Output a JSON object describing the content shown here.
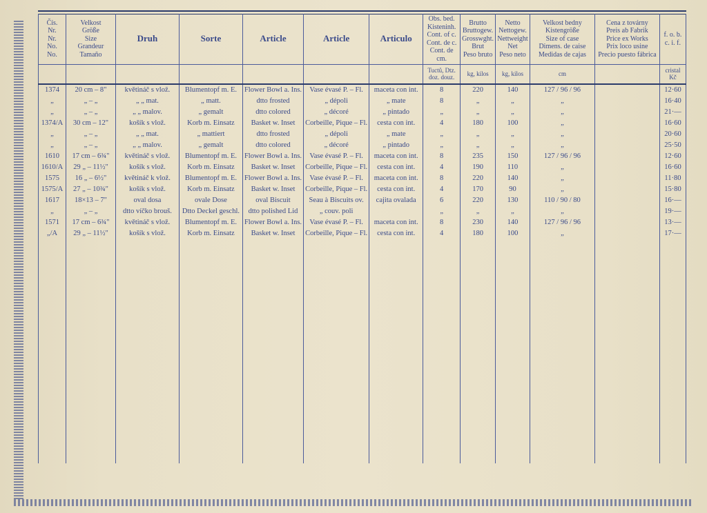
{
  "headers": {
    "no": [
      "Čís.",
      "Nr.",
      "Nr.",
      "No.",
      "No."
    ],
    "size": [
      "Velkost",
      "Größe",
      "Size",
      "Grandeur",
      "Tamaño"
    ],
    "druh": "Druh",
    "sorte": "Sorte",
    "art1": "Article",
    "art2": "Article",
    "art3": "Articulo",
    "cont": [
      "Obs. bed.",
      "Kisteninh.",
      "Cont. of c.",
      "Cont. de c.",
      "Cont. de cm."
    ],
    "brut": [
      "Brutto",
      "Bruttogew.",
      "Grosswght.",
      "Brut",
      "Peso bruto"
    ],
    "net": [
      "Netto",
      "Nettogew.",
      "Nettweight",
      "Net",
      "Peso neto"
    ],
    "dim": [
      "Velkost bedny",
      "Kistengröße",
      "Size of case",
      "Dimens. de caise",
      "Medidas de cajas"
    ],
    "price": [
      "Cena z továrny",
      "Preis ab Fabrik",
      "Price ex Works",
      "Prix loco usine",
      "Precio puesto fábrica"
    ],
    "fob": [
      "f. o. b.",
      "c. i. f."
    ]
  },
  "units": {
    "cont": "Tuctů, Dtz. doz. douz.",
    "brut": "kg, kilos",
    "net": "kg, kilos",
    "dim": "cm",
    "fob": "cristal Kč"
  },
  "rows": [
    {
      "no": "1374",
      "size": "20 cm – 8\"",
      "druh": "květináč s vlož.",
      "sorte": "Blumentopf m. E.",
      "a1": "Flower Bowl a. Ins.",
      "a2": "Vase évasé P. – Fl.",
      "a3": "maceta con int.",
      "cont": "8",
      "brut": "220",
      "net": "140",
      "dim": "127 / 96 / 96",
      "fob": "12·60"
    },
    {
      "no": "„",
      "size": "„   –   „",
      "druh": "„     „     mat.",
      "sorte": "„     matt.",
      "a1": "dtto  frosted",
      "a2": "„   dépoli",
      "a3": "„   mate",
      "cont": "8",
      "brut": "„",
      "net": "„",
      "dim": "„",
      "fob": "16·40"
    },
    {
      "no": "„",
      "size": "„   –   „",
      "druh": "„     „   malov.",
      "sorte": "„   gemalt",
      "a1": "dtto  colored",
      "a2": "„   décoré",
      "a3": "„   pintado",
      "cont": "„",
      "brut": "„",
      "net": "„",
      "dim": "„",
      "fob": "21·—"
    },
    {
      "no": "1374/A",
      "size": "30 cm – 12\"",
      "druh": "košík s vlož.",
      "sorte": "Korb m. Einsatz",
      "a1": "Basket w. Inset",
      "a2": "Corbeille, Pique – Fl.",
      "a3": "cesta con int.",
      "cont": "4",
      "brut": "180",
      "net": "100",
      "dim": "„",
      "fob": "16·60"
    },
    {
      "no": "„",
      "size": "„   –   „",
      "druh": "„     „     mat.",
      "sorte": "„   mattiert",
      "a1": "dtto  frosted",
      "a2": "„   dépoli",
      "a3": "„   mate",
      "cont": "„",
      "brut": "„",
      "net": "„",
      "dim": "„",
      "fob": "20·60"
    },
    {
      "no": "„",
      "size": "„   –   „",
      "druh": "„     „   malov.",
      "sorte": "„   gemalt",
      "a1": "dtto  colored",
      "a2": "„   décoré",
      "a3": "„   pintado",
      "cont": "„",
      "brut": "„",
      "net": "„",
      "dim": "„",
      "fob": "25·50"
    },
    {
      "no": "1610",
      "size": "17 cm – 6¾\"",
      "druh": "květináč s vlož.",
      "sorte": "Blumentopf m. E.",
      "a1": "Flower Bowl a. Ins.",
      "a2": "Vase évasé P. – Fl.",
      "a3": "maceta con int.",
      "cont": "8",
      "brut": "235",
      "net": "150",
      "dim": "127 / 96 / 96",
      "fob": "12·60"
    },
    {
      "no": "1610/A",
      "size": "29  „ – 11½\"",
      "druh": "košík s vlož.",
      "sorte": "Korb m. Einsatz",
      "a1": "Basket w. Inset",
      "a2": "Corbeille, Pique – Fl.",
      "a3": "cesta con int.",
      "cont": "4",
      "brut": "190",
      "net": "110",
      "dim": "„",
      "fob": "16·60"
    },
    {
      "no": "1575",
      "size": "16  „ –  6½\"",
      "druh": "květináč k vlož.",
      "sorte": "Blumentopf m. E.",
      "a1": "Flower Bowl a. Ins.",
      "a2": "Vase évasé P. – Fl.",
      "a3": "maceta con int.",
      "cont": "8",
      "brut": "220",
      "net": "140",
      "dim": "„",
      "fob": "11·80"
    },
    {
      "no": "1575/A",
      "size": "27  „ – 10¾\"",
      "druh": "košík s vlož.",
      "sorte": "Korb m. Einsatz",
      "a1": "Basket w. Inset",
      "a2": "Corbeille, Pique – Fl.",
      "a3": "cesta con int.",
      "cont": "4",
      "brut": "170",
      "net": "90",
      "dim": "„",
      "fob": "15·80"
    },
    {
      "no": "1617",
      "size": "18×13 – 7\"",
      "druh": "oval dosa",
      "sorte": "ovale Dose",
      "a1": "oval Biscuit",
      "a2": "Seau à Biscuits ov.",
      "a3": "cajita ovalada",
      "cont": "6",
      "brut": "220",
      "net": "130",
      "dim": "110 / 90 / 80",
      "fob": "16·—"
    },
    {
      "no": "„",
      "size": "„   –   „",
      "druh": "dtto víčko brouš.",
      "sorte": "Dtto Deckel geschl.",
      "a1": "dtto polished Lid",
      "a2": "„   couv. poli",
      "a3": "",
      "cont": "„",
      "brut": "„",
      "net": "„",
      "dim": "„",
      "fob": "19·—"
    },
    {
      "no": "1571",
      "size": "17 cm – 6¾\"",
      "druh": "květináč s vlož.",
      "sorte": "Blumentopf m. E.",
      "a1": "Flower Bowl a. Ins.",
      "a2": "Vase évasé P. – Fl.",
      "a3": "maceta con int.",
      "cont": "8",
      "brut": "230",
      "net": "140",
      "dim": "127 / 96 / 96",
      "fob": "13·—"
    },
    {
      "no": "„/A",
      "size": "29  „ – 11½\"",
      "druh": "košík s vlož.",
      "sorte": "Korb m. Einsatz",
      "a1": "Basket w. Inset",
      "a2": "Corbeille, Pique – Fl.",
      "a3": "cesta con int.",
      "cont": "4",
      "brut": "180",
      "net": "100",
      "dim": "„",
      "fob": "17·—"
    }
  ],
  "colors": {
    "ink": "#3a4a8a",
    "paper": "#e8e0c8",
    "rule": "#4a5a9a"
  }
}
